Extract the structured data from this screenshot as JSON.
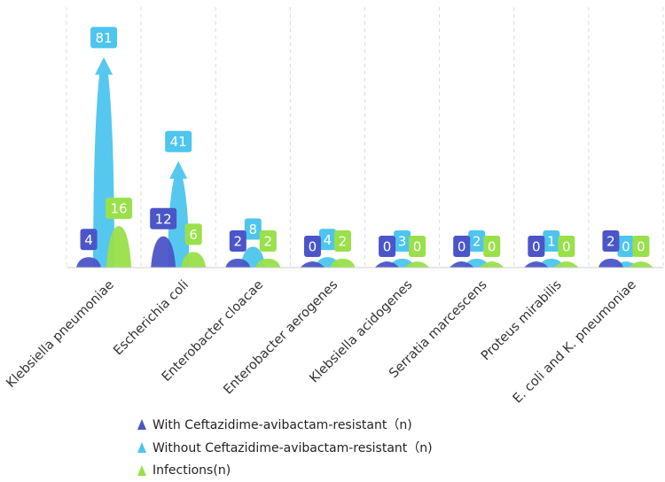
{
  "chart_data": {
    "type": "bar",
    "categories": [
      "Klebsiella pneumoniae",
      "Escherichia coli",
      "Enterobacter cloacae",
      "Enterobacter aerogenes",
      "Klebsiella acidogenes",
      "Serratia marcescens",
      "Proteus mirabilis",
      "E. coli and K. pneumoniae"
    ],
    "series": [
      {
        "name": "With Ceftazidime-avibactam-resistant（n)",
        "color": "#4b55c8",
        "values": [
          4,
          12,
          2,
          0,
          0,
          0,
          0,
          2
        ]
      },
      {
        "name": "Without Ceftazidime-avibactam-resistant（n)",
        "color": "#4dc5ee",
        "values": [
          81,
          41,
          8,
          4,
          3,
          2,
          1,
          0
        ]
      },
      {
        "name": "Infections(n)",
        "color": "#99e04a",
        "values": [
          16,
          6,
          2,
          2,
          0,
          0,
          0,
          0
        ]
      }
    ],
    "title": "",
    "xlabel": "",
    "ylabel": "",
    "ylim": [
      0,
      90
    ],
    "grid": "vertical-dashed",
    "legend": "bottom"
  }
}
